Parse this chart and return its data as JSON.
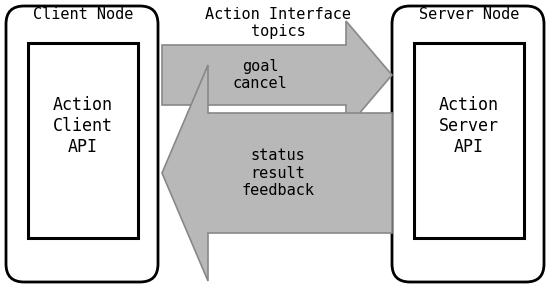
{
  "bg_color": "#ffffff",
  "outer_box_edge": "#000000",
  "inner_box_edge": "#000000",
  "arrow_color": "#b8b8b8",
  "arrow_edge": "#888888",
  "client_node_label": "Client Node",
  "server_node_label": "Server Node",
  "action_client_label": "Action\nClient\nAPI",
  "action_server_label": "Action\nServer\nAPI",
  "interface_title": "Action Interface\ntopics",
  "right_arrow_label": "goal\ncancel",
  "left_arrow_label": "status\nresult\nfeedback",
  "font_size_node": 11,
  "font_size_api": 12,
  "font_size_title": 11,
  "font_size_arrow": 11
}
